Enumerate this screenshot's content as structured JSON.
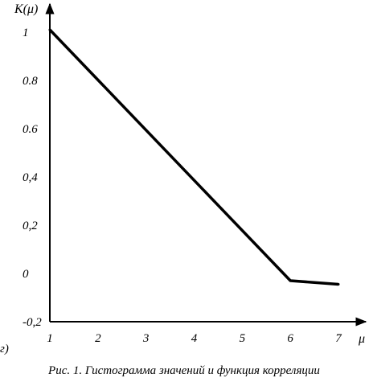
{
  "chart_data": {
    "type": "line",
    "panel_label": "г)",
    "ylabel": "K(μ)",
    "xlabel": "μ",
    "x": [
      1,
      6,
      7
    ],
    "y": [
      1.01,
      -0.03,
      -0.045
    ],
    "xlim": [
      1,
      7.6
    ],
    "ylim": [
      -0.2,
      1.12
    ],
    "xticks": [
      1,
      2,
      3,
      4,
      5,
      6,
      7
    ],
    "xtick_labels": [
      "1",
      "2",
      "3",
      "4",
      "5",
      "6",
      "7"
    ],
    "yticks": [
      1,
      0.8,
      0.6,
      0.4,
      0.2,
      0,
      -0.2
    ],
    "ytick_labels": [
      "1",
      "0.8",
      "0.6",
      "0,4",
      "0,2",
      "0",
      "-0,2"
    ],
    "grid": false,
    "caption": "Рис. 1. Гистограмма значений и функция корреляции"
  }
}
